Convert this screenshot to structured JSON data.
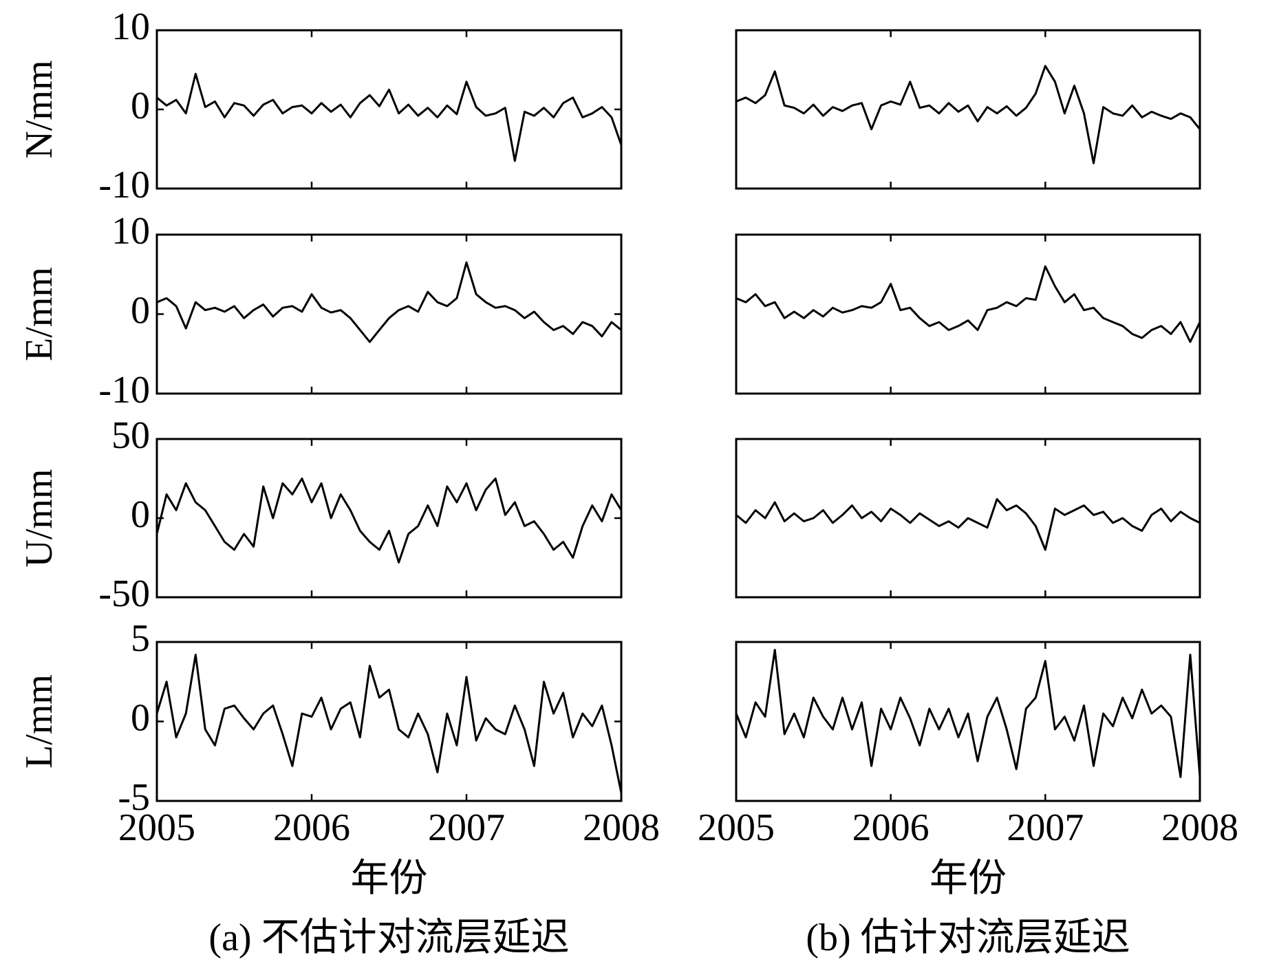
{
  "chart_data": [
    {
      "type": "line",
      "ylabel": "N/mm",
      "xlim": [
        2005,
        2008
      ],
      "xticks": [
        2005,
        2006,
        2007,
        2008
      ],
      "ylim": [
        -10,
        10
      ],
      "yticks": [
        -10,
        0,
        10
      ],
      "x": [
        2005,
        2005.0625,
        2005.125,
        2005.1875,
        2005.25,
        2005.3125,
        2005.375,
        2005.4375,
        2005.5,
        2005.5625,
        2005.625,
        2005.6875,
        2005.75,
        2005.8125,
        2005.875,
        2005.9375,
        2006,
        2006.0625,
        2006.125,
        2006.1875,
        2006.25,
        2006.3125,
        2006.375,
        2006.4375,
        2006.5,
        2006.5625,
        2006.625,
        2006.6875,
        2006.75,
        2006.8125,
        2006.875,
        2006.9375,
        2007,
        2007.0625,
        2007.125,
        2007.1875,
        2007.25,
        2007.3125,
        2007.375,
        2007.4375,
        2007.5,
        2007.5625,
        2007.625,
        2007.6875,
        2007.75,
        2007.8125,
        2007.875,
        2007.9375,
        2008
      ],
      "values": [
        1.5,
        0.5,
        1.2,
        -0.5,
        4.5,
        0.3,
        1,
        -1,
        0.8,
        0.5,
        -0.8,
        0.6,
        1.2,
        -0.5,
        0.3,
        0.5,
        -0.5,
        0.8,
        -0.3,
        0.6,
        -1,
        0.8,
        1.8,
        0.4,
        2.5,
        -0.5,
        0.6,
        -0.8,
        0.2,
        -1,
        0.5,
        -0.6,
        3.5,
        0.3,
        -0.8,
        -0.5,
        0.2,
        -6.5,
        -0.3,
        -0.8,
        0.2,
        -1,
        0.8,
        1.5,
        -1,
        -0.5,
        0.3,
        -1,
        -4.5
      ]
    },
    {
      "type": "line",
      "xlim": [
        2005,
        2008
      ],
      "xticks": [
        2005,
        2006,
        2007,
        2008
      ],
      "ylim": [
        -10,
        10
      ],
      "x": [
        2005,
        2005.0625,
        2005.125,
        2005.1875,
        2005.25,
        2005.3125,
        2005.375,
        2005.4375,
        2005.5,
        2005.5625,
        2005.625,
        2005.6875,
        2005.75,
        2005.8125,
        2005.875,
        2005.9375,
        2006,
        2006.0625,
        2006.125,
        2006.1875,
        2006.25,
        2006.3125,
        2006.375,
        2006.4375,
        2006.5,
        2006.5625,
        2006.625,
        2006.6875,
        2006.75,
        2006.8125,
        2006.875,
        2006.9375,
        2007,
        2007.0625,
        2007.125,
        2007.1875,
        2007.25,
        2007.3125,
        2007.375,
        2007.4375,
        2007.5,
        2007.5625,
        2007.625,
        2007.6875,
        2007.75,
        2007.8125,
        2007.875,
        2007.9375,
        2008
      ],
      "values": [
        1,
        1.5,
        0.8,
        1.8,
        4.8,
        0.5,
        0.2,
        -0.5,
        0.6,
        -0.8,
        0.3,
        -0.2,
        0.5,
        0.8,
        -2.5,
        0.5,
        1,
        0.6,
        3.5,
        0.2,
        0.5,
        -0.5,
        0.8,
        -0.3,
        0.5,
        -1.5,
        0.3,
        -0.5,
        0.4,
        -0.8,
        0.2,
        2,
        5.5,
        3.5,
        -0.5,
        3,
        -0.5,
        -6.8,
        0.3,
        -0.5,
        -0.8,
        0.5,
        -1,
        -0.3,
        -0.8,
        -1.2,
        -0.5,
        -1,
        -2.5
      ]
    },
    {
      "type": "line",
      "ylabel": "E/mm",
      "xlim": [
        2005,
        2008
      ],
      "xticks": [
        2005,
        2006,
        2007,
        2008
      ],
      "ylim": [
        -10,
        10
      ],
      "yticks": [
        -10,
        0,
        10
      ],
      "x": [
        2005,
        2005.0625,
        2005.125,
        2005.1875,
        2005.25,
        2005.3125,
        2005.375,
        2005.4375,
        2005.5,
        2005.5625,
        2005.625,
        2005.6875,
        2005.75,
        2005.8125,
        2005.875,
        2005.9375,
        2006,
        2006.0625,
        2006.125,
        2006.1875,
        2006.25,
        2006.3125,
        2006.375,
        2006.4375,
        2006.5,
        2006.5625,
        2006.625,
        2006.6875,
        2006.75,
        2006.8125,
        2006.875,
        2006.9375,
        2007,
        2007.0625,
        2007.125,
        2007.1875,
        2007.25,
        2007.3125,
        2007.375,
        2007.4375,
        2007.5,
        2007.5625,
        2007.625,
        2007.6875,
        2007.75,
        2007.8125,
        2007.875,
        2007.9375,
        2008
      ],
      "values": [
        1.5,
        2,
        1,
        -1.8,
        1.5,
        0.5,
        0.8,
        0.3,
        1,
        -0.5,
        0.5,
        1.2,
        -0.3,
        0.8,
        1,
        0.3,
        2.5,
        0.8,
        0.2,
        0.5,
        -0.5,
        -2,
        -3.5,
        -2,
        -0.5,
        0.5,
        1,
        0.3,
        2.8,
        1.5,
        1,
        2,
        6.5,
        2.5,
        1.5,
        0.8,
        1,
        0.5,
        -0.5,
        0.3,
        -1,
        -2,
        -1.5,
        -2.5,
        -1,
        -1.5,
        -2.8,
        -1,
        -2
      ]
    },
    {
      "type": "line",
      "xlim": [
        2005,
        2008
      ],
      "xticks": [
        2005,
        2006,
        2007,
        2008
      ],
      "ylim": [
        -10,
        10
      ],
      "x": [
        2005,
        2005.0625,
        2005.125,
        2005.1875,
        2005.25,
        2005.3125,
        2005.375,
        2005.4375,
        2005.5,
        2005.5625,
        2005.625,
        2005.6875,
        2005.75,
        2005.8125,
        2005.875,
        2005.9375,
        2006,
        2006.0625,
        2006.125,
        2006.1875,
        2006.25,
        2006.3125,
        2006.375,
        2006.4375,
        2006.5,
        2006.5625,
        2006.625,
        2006.6875,
        2006.75,
        2006.8125,
        2006.875,
        2006.9375,
        2007,
        2007.0625,
        2007.125,
        2007.1875,
        2007.25,
        2007.3125,
        2007.375,
        2007.4375,
        2007.5,
        2007.5625,
        2007.625,
        2007.6875,
        2007.75,
        2007.8125,
        2007.875,
        2007.9375,
        2008
      ],
      "values": [
        2,
        1.5,
        2.5,
        1,
        1.5,
        -0.5,
        0.3,
        -0.5,
        0.5,
        -0.3,
        0.8,
        0.2,
        0.5,
        1,
        0.8,
        1.5,
        3.8,
        0.5,
        0.8,
        -0.5,
        -1.5,
        -1,
        -2,
        -1.5,
        -0.8,
        -2,
        0.5,
        0.8,
        1.5,
        1,
        2,
        1.8,
        6,
        3.5,
        1.5,
        2.5,
        0.5,
        0.8,
        -0.5,
        -1,
        -1.5,
        -2.5,
        -3,
        -2,
        -1.5,
        -2.5,
        -1,
        -3.5,
        -1
      ]
    },
    {
      "type": "line",
      "ylabel": "U/mm",
      "xlim": [
        2005,
        2008
      ],
      "xticks": [
        2005,
        2006,
        2007,
        2008
      ],
      "ylim": [
        -50,
        50
      ],
      "yticks": [
        -50,
        0,
        50
      ],
      "x": [
        2005,
        2005.0625,
        2005.125,
        2005.1875,
        2005.25,
        2005.3125,
        2005.375,
        2005.4375,
        2005.5,
        2005.5625,
        2005.625,
        2005.6875,
        2005.75,
        2005.8125,
        2005.875,
        2005.9375,
        2006,
        2006.0625,
        2006.125,
        2006.1875,
        2006.25,
        2006.3125,
        2006.375,
        2006.4375,
        2006.5,
        2006.5625,
        2006.625,
        2006.6875,
        2006.75,
        2006.8125,
        2006.875,
        2006.9375,
        2007,
        2007.0625,
        2007.125,
        2007.1875,
        2007.25,
        2007.3125,
        2007.375,
        2007.4375,
        2007.5,
        2007.5625,
        2007.625,
        2007.6875,
        2007.75,
        2007.8125,
        2007.875,
        2007.9375,
        2008
      ],
      "values": [
        -10,
        15,
        5,
        22,
        10,
        5,
        -5,
        -15,
        -20,
        -10,
        -18,
        20,
        0,
        22,
        15,
        25,
        10,
        22,
        0,
        15,
        5,
        -8,
        -15,
        -20,
        -8,
        -28,
        -10,
        -5,
        8,
        -5,
        20,
        10,
        22,
        5,
        18,
        25,
        2,
        10,
        -5,
        -2,
        -10,
        -20,
        -15,
        -25,
        -5,
        8,
        -2,
        15,
        5
      ]
    },
    {
      "type": "line",
      "xlim": [
        2005,
        2008
      ],
      "xticks": [
        2005,
        2006,
        2007,
        2008
      ],
      "ylim": [
        -50,
        50
      ],
      "x": [
        2005,
        2005.0625,
        2005.125,
        2005.1875,
        2005.25,
        2005.3125,
        2005.375,
        2005.4375,
        2005.5,
        2005.5625,
        2005.625,
        2005.6875,
        2005.75,
        2005.8125,
        2005.875,
        2005.9375,
        2006,
        2006.0625,
        2006.125,
        2006.1875,
        2006.25,
        2006.3125,
        2006.375,
        2006.4375,
        2006.5,
        2006.5625,
        2006.625,
        2006.6875,
        2006.75,
        2006.8125,
        2006.875,
        2006.9375,
        2007,
        2007.0625,
        2007.125,
        2007.1875,
        2007.25,
        2007.3125,
        2007.375,
        2007.4375,
        2007.5,
        2007.5625,
        2007.625,
        2007.6875,
        2007.75,
        2007.8125,
        2007.875,
        2007.9375,
        2008
      ],
      "values": [
        2,
        -3,
        5,
        0,
        10,
        -2,
        3,
        -2,
        0,
        5,
        -3,
        2,
        8,
        0,
        4,
        -2,
        6,
        2,
        -3,
        3,
        -1,
        -5,
        -2,
        -6,
        0,
        -3,
        -6,
        12,
        5,
        8,
        3,
        -5,
        -20,
        6,
        2,
        5,
        8,
        2,
        4,
        -3,
        0,
        -5,
        -8,
        2,
        6,
        -2,
        4,
        0,
        -3
      ]
    },
    {
      "type": "line",
      "ylabel": "L/mm",
      "xlabel": "年份",
      "caption": "(a) 不估计对流层延迟",
      "xlim": [
        2005,
        2008
      ],
      "xticks": [
        2005,
        2006,
        2007,
        2008
      ],
      "ylim": [
        -5,
        5
      ],
      "yticks": [
        -5,
        0,
        5
      ],
      "x": [
        2005,
        2005.0625,
        2005.125,
        2005.1875,
        2005.25,
        2005.3125,
        2005.375,
        2005.4375,
        2005.5,
        2005.5625,
        2005.625,
        2005.6875,
        2005.75,
        2005.8125,
        2005.875,
        2005.9375,
        2006,
        2006.0625,
        2006.125,
        2006.1875,
        2006.25,
        2006.3125,
        2006.375,
        2006.4375,
        2006.5,
        2006.5625,
        2006.625,
        2006.6875,
        2006.75,
        2006.8125,
        2006.875,
        2006.9375,
        2007,
        2007.0625,
        2007.125,
        2007.1875,
        2007.25,
        2007.3125,
        2007.375,
        2007.4375,
        2007.5,
        2007.5625,
        2007.625,
        2007.6875,
        2007.75,
        2007.8125,
        2007.875,
        2007.9375,
        2008
      ],
      "values": [
        0.5,
        2.5,
        -1,
        0.5,
        4.2,
        -0.5,
        -1.5,
        0.8,
        1,
        0.2,
        -0.5,
        0.5,
        1,
        -0.8,
        -2.8,
        0.5,
        0.3,
        1.5,
        -0.5,
        0.8,
        1.2,
        -1,
        3.5,
        1.5,
        2,
        -0.5,
        -1,
        0.5,
        -0.8,
        -3.2,
        0.5,
        -1.5,
        2.8,
        -1.2,
        0.2,
        -0.5,
        -0.8,
        1,
        -0.5,
        -2.8,
        2.5,
        0.5,
        1.8,
        -1,
        0.5,
        -0.3,
        1,
        -1.5,
        -4.5
      ]
    },
    {
      "type": "line",
      "xlabel": "年份",
      "caption": "(b) 估计对流层延迟",
      "xlim": [
        2005,
        2008
      ],
      "xticks": [
        2005,
        2006,
        2007,
        2008
      ],
      "ylim": [
        -5,
        5
      ],
      "x": [
        2005,
        2005.0625,
        2005.125,
        2005.1875,
        2005.25,
        2005.3125,
        2005.375,
        2005.4375,
        2005.5,
        2005.5625,
        2005.625,
        2005.6875,
        2005.75,
        2005.8125,
        2005.875,
        2005.9375,
        2006,
        2006.0625,
        2006.125,
        2006.1875,
        2006.25,
        2006.3125,
        2006.375,
        2006.4375,
        2006.5,
        2006.5625,
        2006.625,
        2006.6875,
        2006.75,
        2006.8125,
        2006.875,
        2006.9375,
        2007,
        2007.0625,
        2007.125,
        2007.1875,
        2007.25,
        2007.3125,
        2007.375,
        2007.4375,
        2007.5,
        2007.5625,
        2007.625,
        2007.6875,
        2007.75,
        2007.8125,
        2007.875,
        2007.9375,
        2008
      ],
      "values": [
        0.5,
        -1,
        1.2,
        0.3,
        4.5,
        -0.8,
        0.5,
        -1,
        1.5,
        0.3,
        -0.5,
        1.5,
        -0.5,
        1.2,
        -2.8,
        0.8,
        -0.5,
        1.5,
        0.2,
        -1.5,
        0.8,
        -0.5,
        0.8,
        -1,
        0.5,
        -2.5,
        0.3,
        1.5,
        -0.5,
        -3,
        0.8,
        1.5,
        3.8,
        -0.5,
        0.3,
        -1.2,
        1,
        -2.8,
        0.5,
        -0.3,
        1.5,
        0.2,
        2,
        0.5,
        1,
        0.3,
        -3.5,
        4.2,
        -3.5
      ]
    }
  ]
}
